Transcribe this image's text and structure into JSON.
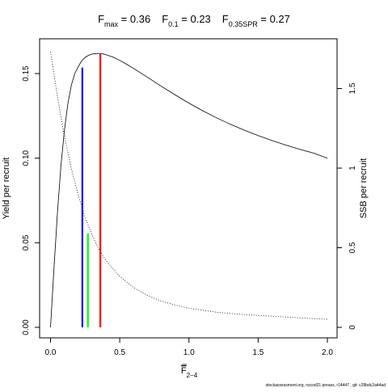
{
  "chart_data": {
    "type": "line",
    "title_parts": [
      {
        "main": "F",
        "sub": "max",
        "eq": " = 0.36"
      },
      {
        "main": "F",
        "sub": "0.1",
        "eq": " = 0.23"
      },
      {
        "main": "F",
        "sub": "0.35SPR",
        "eq": " = 0.27"
      }
    ],
    "xlabel_main": "F",
    "xlabel_sub": "2−4",
    "ylabel_left": "Yield per recruit",
    "ylabel_right": "SSB per recruit",
    "xlim": [
      0,
      2
    ],
    "ylim_left": [
      0,
      0.16
    ],
    "ylim_right": [
      0,
      1.78
    ],
    "x_ticks": [
      0,
      0.5,
      1,
      1.5,
      2
    ],
    "x_tick_labels": [
      "0.0",
      "0.5",
      "1.0",
      "1.5",
      "2.0"
    ],
    "y_left_ticks": [
      0,
      0.05,
      0.1,
      0.15
    ],
    "y_left_tick_labels": [
      "0.00",
      "0.05",
      "0.10",
      "0.15"
    ],
    "y_right_ticks": [
      0,
      0.5,
      1,
      1.5
    ],
    "y_right_tick_labels": [
      "0",
      "0.5",
      "1",
      "1.5"
    ],
    "series": [
      {
        "axis": "left",
        "style": "solid",
        "color": "#000000",
        "x": [
          0,
          0.025,
          0.05,
          0.075,
          0.1,
          0.125,
          0.15,
          0.175,
          0.2,
          0.225,
          0.25,
          0.275,
          0.3,
          0.325,
          0.35,
          0.375,
          0.4,
          0.45,
          0.5,
          0.55,
          0.6,
          0.7,
          0.8,
          0.9,
          1.0,
          1.1,
          1.2,
          1.3,
          1.4,
          1.5,
          1.6,
          1.7,
          1.8,
          1.9,
          2.0
        ],
        "y": [
          0.0,
          0.035,
          0.068,
          0.095,
          0.116,
          0.132,
          0.143,
          0.15,
          0.154,
          0.1575,
          0.1595,
          0.1608,
          0.1615,
          0.1618,
          0.1619,
          0.1617,
          0.1612,
          0.1598,
          0.1578,
          0.1555,
          0.153,
          0.1478,
          0.1425,
          0.1374,
          0.1325,
          0.128,
          0.1238,
          0.12,
          0.1165,
          0.1133,
          0.1104,
          0.1077,
          0.1052,
          0.103,
          0.1
        ]
      },
      {
        "axis": "right",
        "style": "dotted",
        "color": "#000000",
        "x": [
          0,
          0.05,
          0.1,
          0.15,
          0.2,
          0.25,
          0.3,
          0.35,
          0.4,
          0.5,
          0.6,
          0.7,
          0.8,
          0.9,
          1.0,
          1.2,
          1.4,
          1.6,
          1.8,
          2.0
        ],
        "y": [
          1.73,
          1.45,
          1.2,
          1.0,
          0.83,
          0.69,
          0.58,
          0.49,
          0.42,
          0.32,
          0.25,
          0.2,
          0.165,
          0.14,
          0.12,
          0.095,
          0.08,
          0.07,
          0.06,
          0.05
        ]
      }
    ],
    "reference_lines": [
      {
        "name": "Fmax",
        "x": 0.36,
        "y_top": 0.1615,
        "color": "#ff0000"
      },
      {
        "name": "F0.1",
        "x": 0.23,
        "y_top": 0.1535,
        "color": "#0000ff"
      },
      {
        "name": "F0.35SPR",
        "x": 0.27,
        "y_top": 0.0555,
        "color": "#00ff00"
      }
    ],
    "footnote": "stockassessment.org, nscod21 preass, r14447 , git: c28bdc2a44ad"
  }
}
